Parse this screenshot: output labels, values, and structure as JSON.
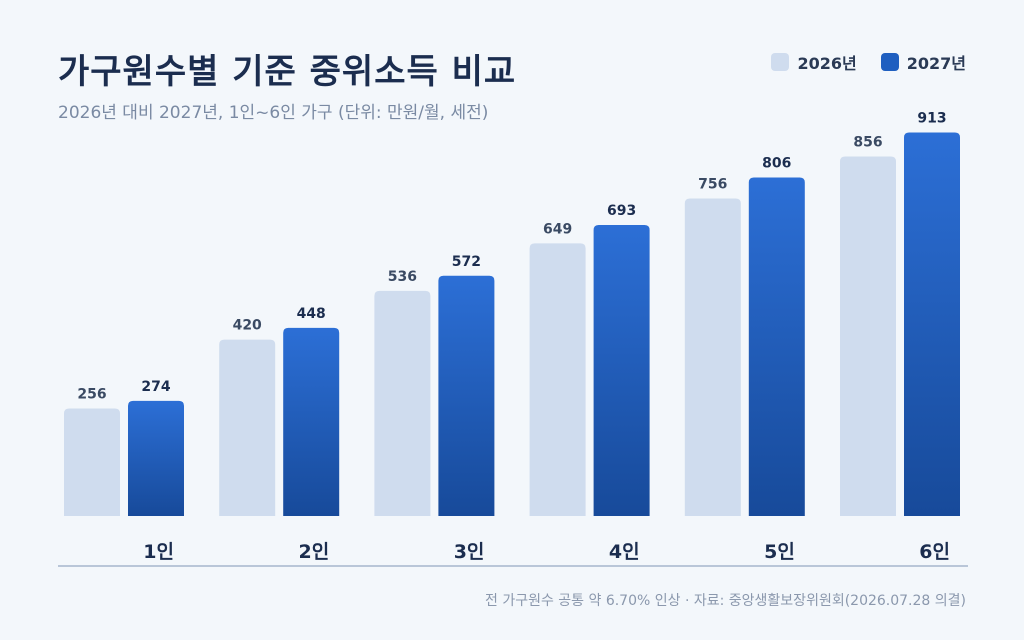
{
  "header": {
    "title": "가구원수별 기준 중위소득 비교",
    "subtitle": "2026년 대비 2027년, 1인~6인 가구 (단위: 만원/월, 세전)"
  },
  "legend": {
    "items": [
      {
        "label": "2026년",
        "color": "#cfdcee"
      },
      {
        "label": "2027년",
        "color": "#1f5fc0"
      }
    ],
    "position": "top-right"
  },
  "chart_data": {
    "type": "bar",
    "title": "가구원수별 기준 중위소득 비교",
    "subtitle": "2026년 대비 2027년, 1인~6인 가구 (단위: 만원/월, 세전)",
    "categories": [
      "1인",
      "2인",
      "3인",
      "4인",
      "5인",
      "6인"
    ],
    "series": [
      {
        "name": "2026년",
        "values": [
          256,
          420,
          536,
          649,
          756,
          856
        ],
        "color": "#cfdcee"
      },
      {
        "name": "2027년",
        "values": [
          274,
          448,
          572,
          693,
          806,
          913
        ],
        "color": "#1f5fc0"
      }
    ],
    "ylim": [
      0,
      1000
    ],
    "grid": false,
    "legend": "top-right"
  },
  "footnote": "전 가구원수 공통 약 6.70% 인상 · 자료: 중앙생활보장위원회(2026.07.28 의결)"
}
